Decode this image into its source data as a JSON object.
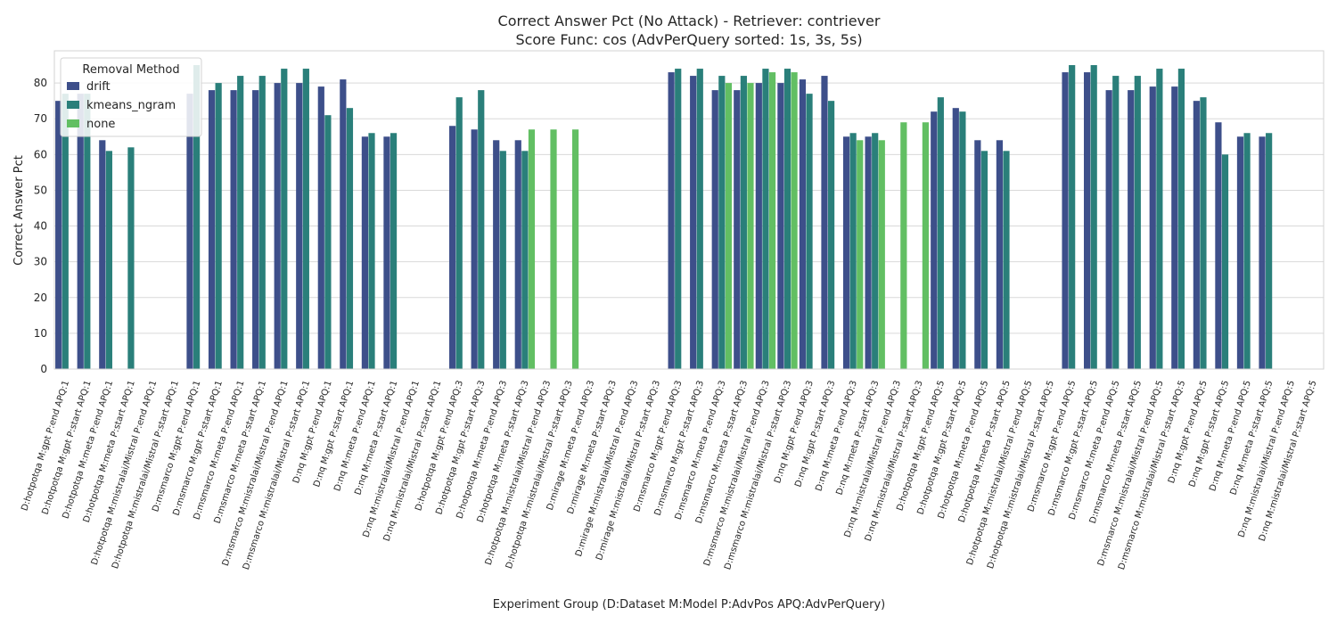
{
  "chart_data": {
    "type": "bar",
    "title": "Correct Answer Pct (No Attack) - Retriever: contriever",
    "subtitle": "Score Func: cos (AdvPerQuery sorted: 1s, 3s, 5s)",
    "xlabel": "Experiment Group (D:Dataset M:Model P:AdvPos APQ:AdvPerQuery)",
    "ylabel": "Correct Answer Pct",
    "ylim": [
      0,
      89
    ],
    "yticks": [
      0,
      10,
      20,
      30,
      40,
      50,
      60,
      70,
      80
    ],
    "grid": true,
    "legend": {
      "title": "Removal Method",
      "placement": "top-left"
    },
    "categories": [
      "D:hotpotqa M:gpt P:end APQ:1",
      "D:hotpotqa M:gpt P:start APQ:1",
      "D:hotpotqa M:meta P:end APQ:1",
      "D:hotpotqa M:meta P:start APQ:1",
      "D:hotpotqa M:mistralai/Mistral P:end APQ:1",
      "D:hotpotqa M:mistralai/Mistral P:start APQ:1",
      "D:msmarco M:gpt P:end APQ:1",
      "D:msmarco M:gpt P:start APQ:1",
      "D:msmarco M:meta P:end APQ:1",
      "D:msmarco M:meta P:start APQ:1",
      "D:msmarco M:mistralai/Mistral P:end APQ:1",
      "D:msmarco M:mistralai/Mistral P:start APQ:1",
      "D:nq M:gpt P:end APQ:1",
      "D:nq M:gpt P:start APQ:1",
      "D:nq M:meta P:end APQ:1",
      "D:nq M:meta P:start APQ:1",
      "D:nq M:mistralai/Mistral P:end APQ:1",
      "D:nq M:mistralai/Mistral P:start APQ:1",
      "D:hotpotqa M:gpt P:end APQ:3",
      "D:hotpotqa M:gpt P:start APQ:3",
      "D:hotpotqa M:meta P:end APQ:3",
      "D:hotpotqa M:meta P:start APQ:3",
      "D:hotpotqa M:mistralai/Mistral P:end APQ:3",
      "D:hotpotqa M:mistralai/Mistral P:start APQ:3",
      "D:mirage M:meta P:end APQ:3",
      "D:mirage M:meta P:start APQ:3",
      "D:mirage M:mistralai/Mistral P:end APQ:3",
      "D:mirage M:mistralai/Mistral P:start APQ:3",
      "D:msmarco M:gpt P:end APQ:3",
      "D:msmarco M:gpt P:start APQ:3",
      "D:msmarco M:meta P:end APQ:3",
      "D:msmarco M:meta P:start APQ:3",
      "D:msmarco M:mistralai/Mistral P:end APQ:3",
      "D:msmarco M:mistralai/Mistral P:start APQ:3",
      "D:nq M:gpt P:end APQ:3",
      "D:nq M:gpt P:start APQ:3",
      "D:nq M:meta P:end APQ:3",
      "D:nq M:meta P:start APQ:3",
      "D:nq M:mistralai/Mistral P:end APQ:3",
      "D:nq M:mistralai/Mistral P:start APQ:3",
      "D:hotpotqa M:gpt P:end APQ:5",
      "D:hotpotqa M:gpt P:start APQ:5",
      "D:hotpotqa M:meta P:end APQ:5",
      "D:hotpotqa M:meta P:start APQ:5",
      "D:hotpotqa M:mistralai/Mistral P:end APQ:5",
      "D:hotpotqa M:mistralai/Mistral P:start APQ:5",
      "D:msmarco M:gpt P:end APQ:5",
      "D:msmarco M:gpt P:start APQ:5",
      "D:msmarco M:meta P:end APQ:5",
      "D:msmarco M:meta P:start APQ:5",
      "D:msmarco M:mistralai/Mistral P:end APQ:5",
      "D:msmarco M:mistralai/Mistral P:start APQ:5",
      "D:nq M:gpt P:end APQ:5",
      "D:nq M:gpt P:start APQ:5",
      "D:nq M:meta P:end APQ:5",
      "D:nq M:meta P:start APQ:5",
      "D:nq M:mistralai/Mistral P:end APQ:5",
      "D:nq M:mistralai/Mistral P:start APQ:5"
    ],
    "series": [
      {
        "name": "drift",
        "color": "#3d4f8a",
        "values": [
          75,
          77,
          64,
          null,
          null,
          null,
          77,
          78,
          78,
          78,
          80,
          80,
          79,
          81,
          65,
          65,
          null,
          null,
          68,
          67,
          64,
          64,
          null,
          null,
          null,
          null,
          null,
          null,
          83,
          82,
          78,
          78,
          80,
          80,
          81,
          82,
          65,
          65,
          null,
          null,
          72,
          73,
          64,
          64,
          null,
          null,
          83,
          83,
          78,
          78,
          79,
          79,
          75,
          69,
          65,
          65,
          null,
          null
        ]
      },
      {
        "name": "kmeans_ngram",
        "color": "#2a7f7a",
        "values": [
          77,
          77,
          61,
          62,
          null,
          null,
          85,
          80,
          82,
          82,
          84,
          84,
          71,
          73,
          66,
          66,
          null,
          null,
          76,
          78,
          61,
          61,
          null,
          null,
          null,
          null,
          null,
          null,
          84,
          84,
          82,
          82,
          84,
          84,
          77,
          75,
          66,
          66,
          null,
          null,
          76,
          72,
          61,
          61,
          null,
          null,
          85,
          85,
          82,
          82,
          84,
          84,
          76,
          60,
          66,
          66,
          null,
          null
        ]
      },
      {
        "name": "none",
        "color": "#62bf63",
        "values": [
          null,
          null,
          null,
          null,
          null,
          null,
          null,
          null,
          null,
          null,
          null,
          null,
          null,
          null,
          null,
          null,
          null,
          null,
          null,
          null,
          null,
          67,
          67,
          67,
          null,
          null,
          null,
          null,
          null,
          null,
          80,
          80,
          83,
          83,
          null,
          null,
          64,
          64,
          69,
          69,
          null,
          null,
          null,
          null,
          null,
          null,
          null,
          null,
          null,
          null,
          null,
          null,
          null,
          null,
          null,
          null,
          null,
          null
        ]
      }
    ]
  }
}
